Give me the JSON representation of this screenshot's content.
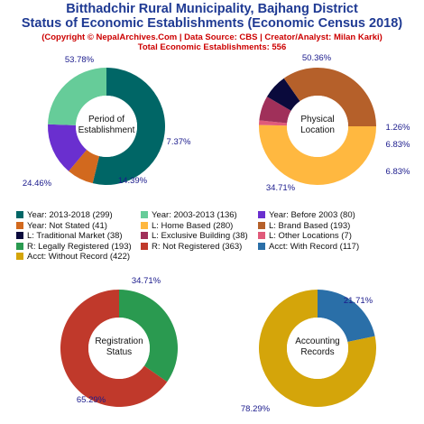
{
  "header": {
    "title_line1": "Bitthadchir Rural Municipality, Bajhang District",
    "title_line2": "Status of Economic Establishments (Economic Census 2018)",
    "subtitle_line1": "(Copyright © NepalArchives.Com | Data Source: CBS | Creator/Analyst: Milan Karki)",
    "subtitle_line2": "Total Economic Establishments: 556"
  },
  "chart_data": [
    {
      "type": "pie",
      "title": "Period of\nEstablishment",
      "slices": [
        {
          "label": "Year: 2013-2018 (299)",
          "value": 299,
          "pct": "53.78%",
          "color": "#006666"
        },
        {
          "label": "Year: Not Stated (41)",
          "value": 41,
          "pct": "7.37%",
          "color": "#d2691e"
        },
        {
          "label": "Year: Before 2003 (80)",
          "value": 80,
          "pct": "14.39%",
          "color": "#6a2fcf"
        },
        {
          "label": "Year: 2003-2013 (136)",
          "value": 136,
          "pct": "24.46%",
          "color": "#66cc99"
        }
      ]
    },
    {
      "type": "pie",
      "title": "Physical\nLocation",
      "slices": [
        {
          "label": "L: Home Based (280)",
          "value": 280,
          "pct": "50.36%",
          "color": "#ffb840"
        },
        {
          "label": "L: Other Locations (7)",
          "value": 7,
          "pct": "1.26%",
          "color": "#e05a7a"
        },
        {
          "label": "L: Exclusive Building (38)",
          "value": 38,
          "pct": "6.83%",
          "color": "#a0305a"
        },
        {
          "label": "L: Traditional Market (38)",
          "value": 38,
          "pct": "6.83%",
          "color": "#0a0a3c"
        },
        {
          "label": "L: Brand Based (193)",
          "value": 193,
          "pct": "34.71%",
          "color": "#b5602a"
        }
      ]
    },
    {
      "type": "pie",
      "title": "Registration\nStatus",
      "slices": [
        {
          "label": "R: Legally Registered (193)",
          "value": 193,
          "pct": "34.71%",
          "color": "#2a9a50"
        },
        {
          "label": "R: Not Registered (363)",
          "value": 363,
          "pct": "65.29%",
          "color": "#c0392b"
        }
      ]
    },
    {
      "type": "pie",
      "title": "Accounting\nRecords",
      "slices": [
        {
          "label": "Acct: With Record (117)",
          "value": 117,
          "pct": "21.71%",
          "color": "#2a6fa8"
        },
        {
          "label": "Acct: Without Record (422)",
          "value": 422,
          "pct": "78.29%",
          "color": "#d4a50a"
        }
      ]
    }
  ],
  "legend": [
    [
      {
        "label": "Year: 2013-2018 (299)",
        "color": "#006666"
      },
      {
        "label": "Year: 2003-2013 (136)",
        "color": "#66cc99"
      },
      {
        "label": "Year: Before 2003 (80)",
        "color": "#6a2fcf"
      }
    ],
    [
      {
        "label": "Year: Not Stated (41)",
        "color": "#d2691e"
      },
      {
        "label": "L: Home Based (280)",
        "color": "#ffb840"
      },
      {
        "label": "L: Brand Based (193)",
        "color": "#b5602a"
      }
    ],
    [
      {
        "label": "L: Traditional Market (38)",
        "color": "#0a0a3c"
      },
      {
        "label": "L: Exclusive Building (38)",
        "color": "#a0305a"
      },
      {
        "label": "L: Other Locations (7)",
        "color": "#e05a7a"
      }
    ],
    [
      {
        "label": "R: Legally Registered (193)",
        "color": "#2a9a50"
      },
      {
        "label": "R: Not Registered (363)",
        "color": "#c0392b"
      },
      {
        "label": "Acct: With Record (117)",
        "color": "#2a6fa8"
      }
    ],
    [
      {
        "label": "Acct: Without Record (422)",
        "color": "#d4a50a"
      }
    ]
  ]
}
